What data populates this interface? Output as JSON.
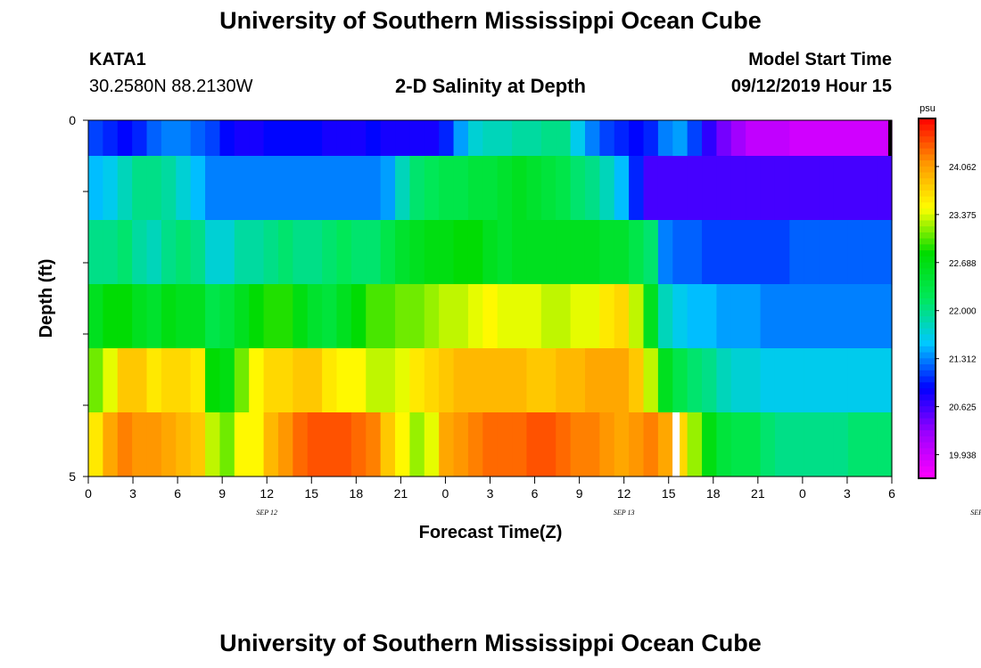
{
  "header": {
    "title": "University of Southern Mississippi Ocean Cube",
    "station_id": "KATA1",
    "station_coords": "30.2580N 88.2130W",
    "subtitle": "2-D Salinity at Depth",
    "start_label": "Model Start Time",
    "start_value": "09/12/2019 Hour 15"
  },
  "footer": {
    "title": "University of Southern Mississippi Ocean Cube"
  },
  "chart_data": {
    "type": "heatmap",
    "title": "2-D Salinity at Depth",
    "xlabel": "Forecast Time(Z)",
    "ylabel": "Depth (ft)",
    "x_tick_labels": [
      "0",
      "3",
      "6",
      "9",
      "12",
      "15",
      "18",
      "21",
      "0",
      "3",
      "6",
      "9",
      "12",
      "15",
      "18",
      "21",
      "0",
      "3",
      "6"
    ],
    "date_labels": [
      {
        "label": "SEP 12",
        "hour": 12
      },
      {
        "label": "SEP 13",
        "hour": 36
      },
      {
        "label": "SEP 14",
        "hour": 60
      }
    ],
    "x_range_hours": [
      0,
      54
    ],
    "y_tick_labels": [
      "0",
      "5"
    ],
    "y_range": [
      0,
      5
    ],
    "colorbar": {
      "unit": "psu",
      "ticks": [
        "24.062",
        "23.375",
        "22.688",
        "22.000",
        "21.312",
        "20.625",
        "19.938"
      ],
      "min": 19.6,
      "max": 24.75
    },
    "missing_marker_hour": 39.5,
    "depth_layers": [
      {
        "layer": 1,
        "values": [
          21.1,
          21.0,
          20.9,
          21.0,
          21.2,
          21.3,
          21.3,
          21.2,
          21.1,
          20.9,
          20.8,
          20.8,
          20.9,
          20.9,
          20.9,
          20.9,
          20.8,
          20.8,
          20.8,
          20.9,
          20.8,
          20.8,
          20.8,
          20.8,
          21.0,
          21.4,
          21.7,
          21.8,
          21.8,
          21.9,
          21.9,
          22.0,
          22.0,
          21.6,
          21.3,
          21.1,
          21.0,
          20.9,
          21.0,
          21.3,
          21.4,
          21.1,
          20.7,
          20.4,
          20.2,
          20.0,
          20.0,
          20.0,
          19.9,
          19.9,
          19.9,
          19.9,
          19.9,
          19.9,
          19.9
        ]
      },
      {
        "layer": 2,
        "values": [
          21.5,
          21.6,
          21.8,
          22.0,
          22.0,
          21.9,
          21.7,
          21.5,
          21.3,
          21.3,
          21.3,
          21.3,
          21.3,
          21.3,
          21.3,
          21.3,
          21.3,
          21.3,
          21.3,
          21.3,
          21.4,
          21.8,
          22.1,
          22.2,
          22.3,
          22.3,
          22.4,
          22.4,
          22.5,
          22.6,
          22.5,
          22.4,
          22.3,
          22.1,
          22.0,
          21.8,
          21.5,
          21.0,
          20.6,
          20.6,
          20.6,
          20.6,
          20.6,
          20.6,
          20.6,
          20.6,
          20.6,
          20.6,
          20.6,
          20.6,
          20.6,
          20.6,
          20.6,
          20.6,
          20.6
        ]
      },
      {
        "layer": 3,
        "values": [
          22.0,
          22.0,
          22.1,
          21.9,
          21.8,
          22.0,
          22.1,
          22.0,
          21.7,
          21.7,
          21.9,
          21.9,
          22.0,
          22.1,
          22.0,
          22.0,
          22.1,
          22.2,
          22.1,
          22.1,
          22.3,
          22.5,
          22.6,
          22.7,
          22.7,
          22.8,
          22.8,
          22.6,
          22.5,
          22.6,
          22.6,
          22.6,
          22.6,
          22.6,
          22.6,
          22.5,
          22.5,
          22.3,
          22.1,
          21.3,
          21.2,
          21.2,
          21.1,
          21.1,
          21.1,
          21.1,
          21.1,
          21.1,
          21.2,
          21.2,
          21.2,
          21.2,
          21.2,
          21.2,
          21.2
        ]
      },
      {
        "layer": 4,
        "values": [
          22.6,
          22.8,
          22.8,
          22.6,
          22.5,
          22.7,
          22.6,
          22.6,
          22.3,
          22.4,
          22.6,
          22.8,
          22.9,
          22.9,
          22.7,
          22.5,
          22.4,
          22.6,
          22.8,
          23.0,
          23.0,
          23.1,
          23.1,
          23.2,
          23.3,
          23.3,
          23.4,
          23.5,
          23.4,
          23.4,
          23.4,
          23.3,
          23.3,
          23.4,
          23.4,
          23.6,
          23.7,
          23.3,
          22.6,
          21.8,
          21.6,
          21.5,
          21.5,
          21.4,
          21.4,
          21.4,
          21.3,
          21.3,
          21.3,
          21.3,
          21.3,
          21.3,
          21.3,
          21.3,
          21.3
        ]
      },
      {
        "layer": 5,
        "values": [
          23.1,
          23.4,
          23.8,
          23.8,
          23.6,
          23.7,
          23.7,
          23.6,
          22.8,
          22.7,
          23.1,
          23.5,
          23.7,
          23.7,
          23.8,
          23.8,
          23.6,
          23.5,
          23.5,
          23.3,
          23.3,
          23.4,
          23.6,
          23.7,
          23.8,
          23.9,
          23.9,
          23.9,
          23.9,
          23.9,
          23.8,
          23.8,
          23.9,
          23.9,
          24.0,
          24.0,
          24.0,
          23.8,
          23.3,
          22.6,
          22.3,
          22.1,
          22.0,
          21.8,
          21.7,
          21.7,
          21.6,
          21.6,
          21.6,
          21.6,
          21.6,
          21.6,
          21.6,
          21.6,
          21.6
        ]
      },
      {
        "layer": 6,
        "values": [
          23.6,
          24.0,
          24.2,
          24.1,
          24.1,
          24.0,
          23.9,
          23.8,
          23.3,
          23.1,
          23.5,
          23.5,
          23.9,
          24.1,
          24.3,
          24.4,
          24.4,
          24.4,
          24.3,
          24.2,
          23.8,
          23.5,
          23.2,
          23.4,
          24.0,
          24.1,
          24.2,
          24.3,
          24.3,
          24.3,
          24.4,
          24.4,
          24.3,
          24.2,
          24.2,
          24.1,
          24.0,
          24.1,
          24.2,
          24.0,
          23.7,
          23.2,
          22.7,
          22.4,
          22.3,
          22.3,
          22.1,
          22.0,
          22.0,
          22.0,
          22.0,
          22.0,
          22.1,
          22.1,
          22.1
        ]
      }
    ]
  },
  "colors": {
    "scale": [
      "#ff00ff",
      "#9b00ff",
      "#0000ff",
      "#00c8ff",
      "#00e85a",
      "#00dc00",
      "#ffff00",
      "#ff9600",
      "#ff0000"
    ],
    "missing_marker": "#ffffff",
    "axis": "#000000"
  }
}
